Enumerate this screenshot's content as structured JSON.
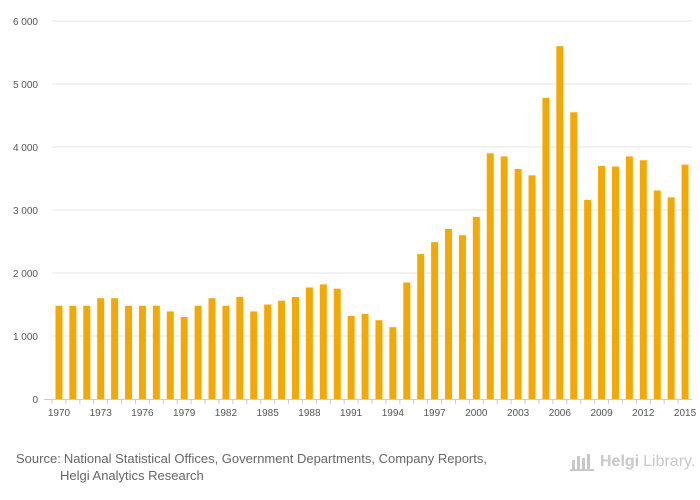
{
  "chart_data": {
    "type": "bar",
    "title": "",
    "xlabel": "",
    "ylabel": "",
    "ylim": [
      0,
      6000
    ],
    "yticks": [
      0,
      1000,
      2000,
      3000,
      4000,
      5000,
      6000
    ],
    "ytick_labels": [
      "0",
      "1 000",
      "2 000",
      "3 000",
      "4 000",
      "5 000",
      "6 000"
    ],
    "categories": [
      1970,
      1971,
      1972,
      1973,
      1974,
      1975,
      1976,
      1977,
      1978,
      1979,
      1980,
      1981,
      1982,
      1983,
      1984,
      1985,
      1986,
      1987,
      1988,
      1989,
      1990,
      1991,
      1992,
      1993,
      1994,
      1995,
      1996,
      1997,
      1998,
      1999,
      2000,
      2001,
      2002,
      2003,
      2004,
      2005,
      2006,
      2007,
      2008,
      2009,
      2010,
      2011,
      2012,
      2013,
      2014,
      2015
    ],
    "xtick_labels": [
      "1970",
      "1973",
      "1976",
      "1979",
      "1982",
      "1985",
      "1988",
      "1991",
      "1994",
      "1997",
      "2000",
      "2003",
      "2006",
      "2009",
      "2012",
      "2015"
    ],
    "values": [
      1480,
      1480,
      1480,
      1600,
      1600,
      1480,
      1480,
      1480,
      1390,
      1300,
      1480,
      1600,
      1480,
      1620,
      1390,
      1500,
      1560,
      1620,
      1770,
      1820,
      1750,
      1320,
      1350,
      1250,
      1140,
      1850,
      2300,
      2490,
      2700,
      2600,
      2890,
      3900,
      3850,
      3650,
      3550,
      4780,
      5600,
      4550,
      3160,
      3700,
      3690,
      3850,
      3790,
      3310,
      3200,
      3720
    ],
    "bar_color": "#f5a800",
    "grid": true,
    "legend": "none"
  },
  "footer": {
    "source_prefix": "Source:",
    "source_line1": "National Statistical Offices, Government Departments, Company Reports,",
    "source_line2": "Helgi Analytics Research"
  },
  "logo": {
    "bold": "Helgi",
    "light": "Library.",
    "icon": "library-building-icon",
    "color": "#c8c8c8"
  }
}
